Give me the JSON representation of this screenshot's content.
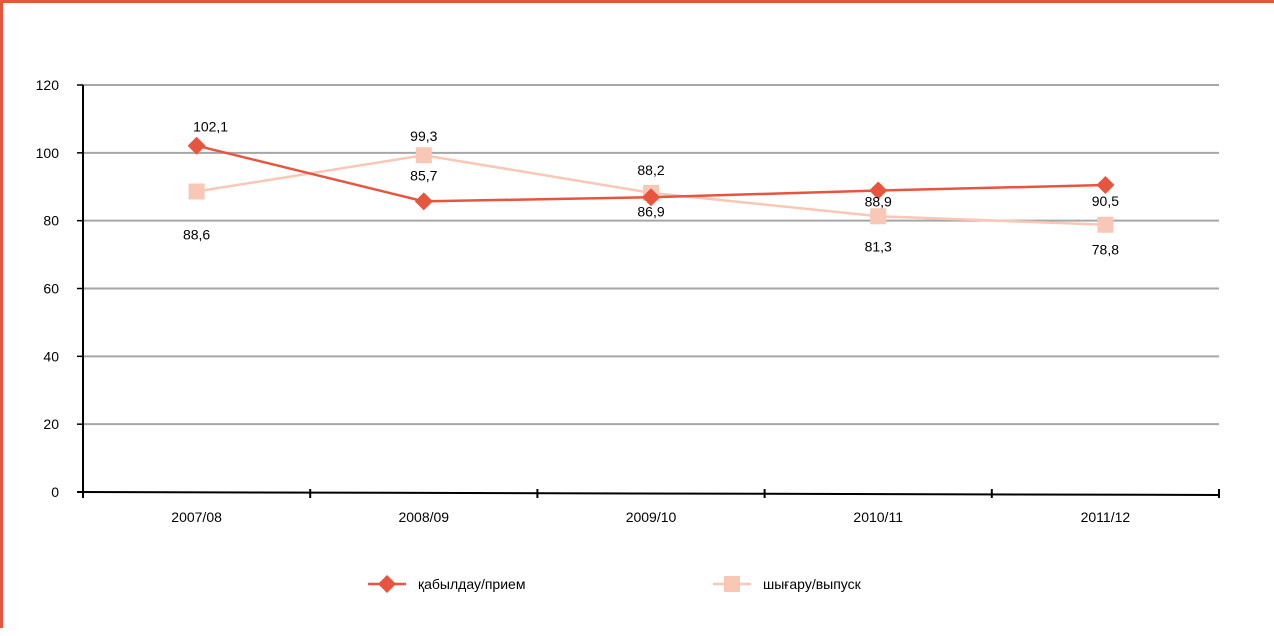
{
  "colors": {
    "frame": "#e8553e",
    "grid": "#a6a6a6",
    "axis": "#000000"
  },
  "chart_data": {
    "type": "line",
    "categories": [
      "2007/08",
      "2008/09",
      "2009/10",
      "2010/11",
      "2011/12"
    ],
    "ylim": [
      0,
      120
    ],
    "yticks": [
      "0",
      "20",
      "40",
      "60",
      "80",
      "100",
      "120"
    ],
    "grid": true,
    "legend": "bottom",
    "series": [
      {
        "name": "қабылдау/прием",
        "marker": "diamond",
        "color": "#e8553e",
        "values": [
          102.1,
          85.7,
          86.9,
          88.9,
          90.5
        ],
        "labels": [
          "102,1",
          "85,7",
          "86,9",
          "88,9",
          "90,5"
        ]
      },
      {
        "name": "шығару/выпуск",
        "marker": "square",
        "color": "#f8c7b5",
        "values": [
          88.6,
          99.3,
          88.2,
          81.3,
          78.8
        ],
        "labels": [
          "88,6",
          "99,3",
          "88,2",
          "81,3",
          "78,8"
        ]
      }
    ]
  }
}
